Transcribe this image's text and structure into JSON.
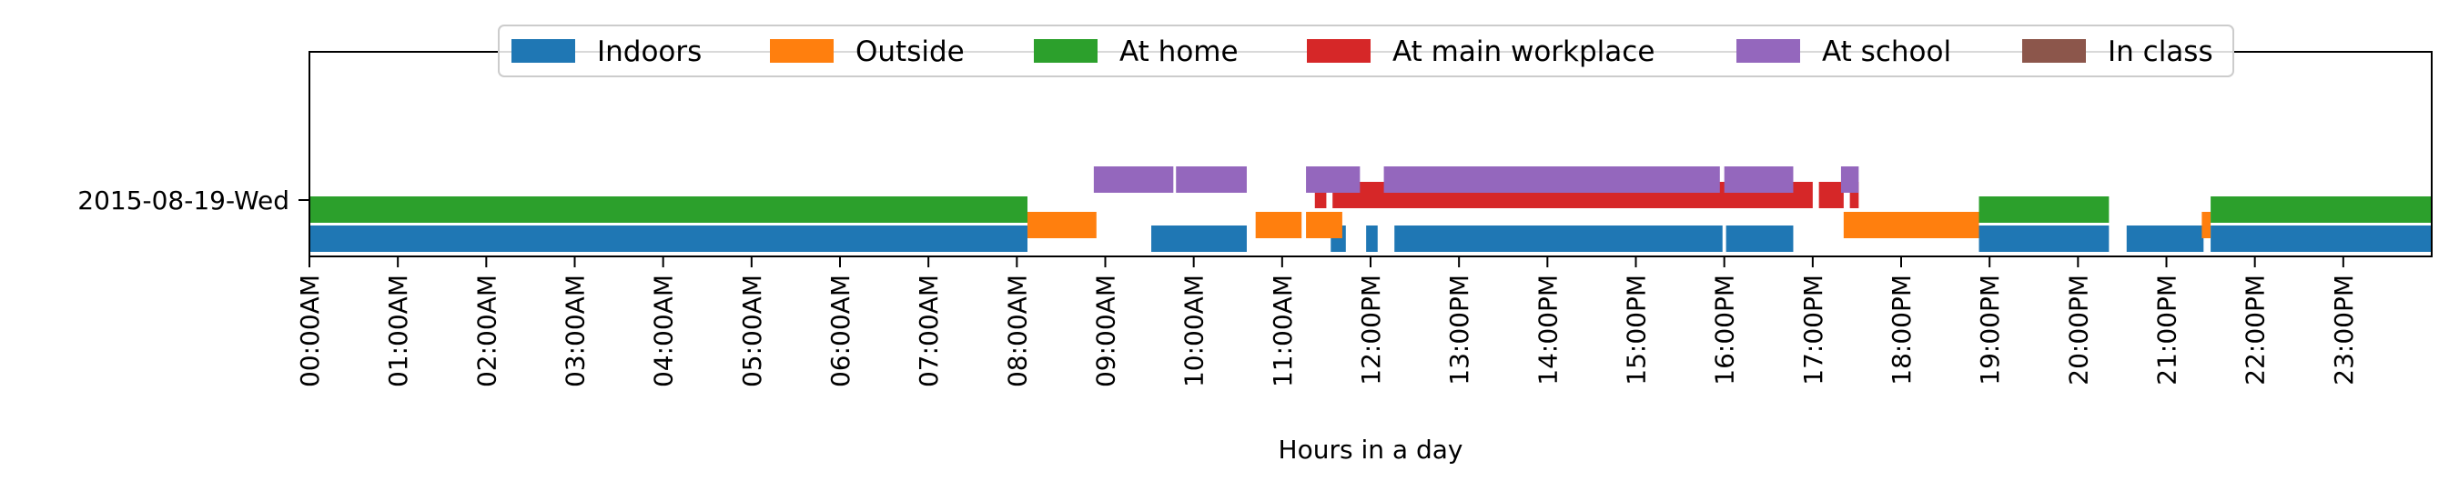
{
  "chart_data": {
    "type": "timeline",
    "xlabel": "Hours in a day",
    "ylabel": "",
    "xlim": [
      0,
      24
    ],
    "x_ticks": [
      "00:00AM",
      "01:00AM",
      "02:00AM",
      "03:00AM",
      "04:00AM",
      "05:00AM",
      "06:00AM",
      "07:00AM",
      "08:00AM",
      "09:00AM",
      "10:00AM",
      "11:00AM",
      "12:00PM",
      "13:00PM",
      "14:00PM",
      "15:00PM",
      "16:00PM",
      "17:00PM",
      "18:00PM",
      "19:00PM",
      "20:00PM",
      "21:00PM",
      "22:00PM",
      "23:00PM"
    ],
    "y_categories": [
      "2015-08-19-Wed"
    ],
    "legend_position": "top-center",
    "series": [
      {
        "name": "Indoors",
        "color": "#1f77b4",
        "intervals": [
          [
            0.0,
            8.12
          ],
          [
            9.52,
            10.6
          ],
          [
            11.55,
            11.72
          ],
          [
            11.95,
            12.08
          ],
          [
            12.27,
            15.98
          ],
          [
            16.02,
            16.78
          ],
          [
            18.88,
            20.35
          ],
          [
            20.55,
            21.42
          ],
          [
            21.5,
            24.0
          ]
        ]
      },
      {
        "name": "Outside",
        "color": "#ff7f0e",
        "intervals": [
          [
            8.12,
            8.9
          ],
          [
            10.7,
            11.22
          ],
          [
            11.27,
            11.68
          ],
          [
            17.35,
            18.88
          ],
          [
            21.4,
            21.5
          ]
        ]
      },
      {
        "name": "At home",
        "color": "#2ca02c",
        "intervals": [
          [
            0.0,
            8.12
          ],
          [
            18.88,
            20.35
          ],
          [
            21.5,
            24.0
          ]
        ]
      },
      {
        "name": "At main workplace",
        "color": "#d62728",
        "intervals": [
          [
            11.37,
            11.5
          ],
          [
            11.57,
            17.0
          ],
          [
            17.07,
            17.35
          ],
          [
            17.42,
            17.52
          ]
        ]
      },
      {
        "name": "At school",
        "color": "#9467bd",
        "intervals": [
          [
            8.87,
            9.77
          ],
          [
            9.8,
            10.6
          ],
          [
            11.27,
            11.88
          ],
          [
            12.15,
            15.95
          ],
          [
            16.0,
            16.78
          ],
          [
            17.32,
            17.52
          ]
        ]
      },
      {
        "name": "In class",
        "color": "#8c564b",
        "intervals": []
      }
    ]
  }
}
